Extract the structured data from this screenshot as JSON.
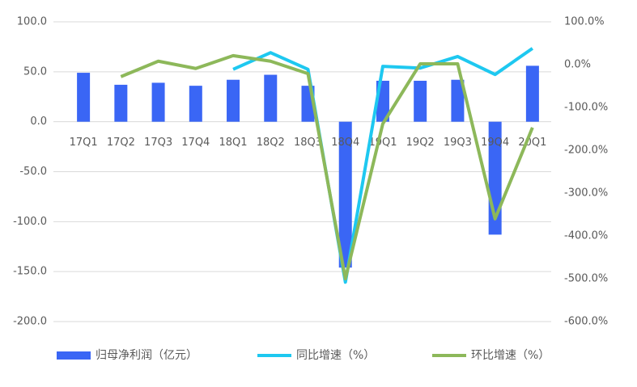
{
  "chart_data": {
    "type": "bar-line",
    "categories": [
      "17Q1",
      "17Q2",
      "17Q3",
      "17Q4",
      "18Q1",
      "18Q2",
      "18Q3",
      "18Q4",
      "19Q1",
      "19Q2",
      "19Q3",
      "19Q4",
      "20Q1"
    ],
    "series": [
      {
        "name": "归母净利润（亿元）",
        "type": "bar",
        "color": "#3a66f5",
        "values": [
          49,
          37,
          39,
          36,
          42,
          47,
          36,
          -146,
          41,
          41,
          42,
          -113,
          56
        ]
      },
      {
        "name": "同比增速（%）",
        "type": "line",
        "axis": "y2",
        "color": "#1ec8f0",
        "values": [
          null,
          null,
          null,
          null,
          -11,
          28,
          -11,
          -508,
          -4,
          -8,
          19,
          -23,
          38
        ]
      },
      {
        "name": "环比增速（%）",
        "type": "line",
        "axis": "y2",
        "color": "#8db85a",
        "values": [
          null,
          -28,
          8,
          -9,
          21,
          8,
          -21,
          -500,
          -138,
          2,
          2,
          -360,
          -147
        ]
      }
    ],
    "ylim": [
      -200,
      100
    ],
    "yticks": [
      {
        "value": -200,
        "label": "-200.0"
      },
      {
        "value": -150,
        "label": "-150.0"
      },
      {
        "value": -100,
        "label": "-100.0"
      },
      {
        "value": -50,
        "label": "-50.0"
      },
      {
        "value": 0,
        "label": "0.0"
      },
      {
        "value": 50,
        "label": "50.0"
      },
      {
        "value": 100,
        "label": "100.0"
      }
    ],
    "y2lim": [
      -600,
      100
    ],
    "y2ticks": [
      {
        "value": -600,
        "label": "-600.0%"
      },
      {
        "value": -500,
        "label": "-500.0%"
      },
      {
        "value": -400,
        "label": "-400.0%"
      },
      {
        "value": -300,
        "label": "-300.0%"
      },
      {
        "value": -200,
        "label": "-200.0%"
      },
      {
        "value": -100,
        "label": "-100.0%"
      },
      {
        "value": 0,
        "label": "0.0%"
      },
      {
        "value": 100,
        "label": "100.0%"
      }
    ],
    "grid": true
  }
}
